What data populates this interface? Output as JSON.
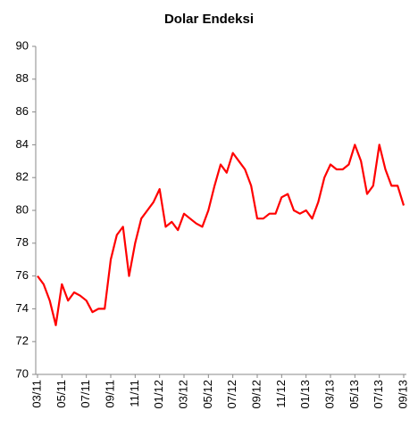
{
  "chart_data": {
    "type": "line",
    "title": "Dolar Endeksi",
    "categories": [
      "03/11",
      null,
      null,
      null,
      "05/11",
      null,
      null,
      null,
      "07/11",
      null,
      null,
      null,
      "09/11",
      null,
      null,
      null,
      "11/11",
      null,
      null,
      null,
      "01/12",
      null,
      null,
      null,
      "03/12",
      null,
      null,
      null,
      "05/12",
      null,
      null,
      null,
      "07/12",
      null,
      null,
      null,
      "09/12",
      null,
      null,
      null,
      "11/12",
      null,
      null,
      null,
      "01/13",
      null,
      null,
      null,
      "03/13",
      null,
      null,
      null,
      "05/13",
      null,
      null,
      null,
      "07/13",
      null,
      null,
      null,
      "09/13"
    ],
    "values": [
      76,
      75.5,
      74.5,
      73,
      75.5,
      74.5,
      75,
      74.8,
      74.5,
      73.8,
      74,
      74,
      77,
      78.5,
      79,
      76,
      78,
      79.5,
      80,
      80.5,
      81.3,
      79,
      79.3,
      78.8,
      79.8,
      79.5,
      79.2,
      79,
      80,
      81.5,
      82.8,
      82.3,
      83.5,
      83,
      82.5,
      81.5,
      79.5,
      79.5,
      79.8,
      79.8,
      80.8,
      81,
      80,
      79.8,
      80,
      79.5,
      80.5,
      82,
      82.8,
      82.5,
      82.5,
      82.8,
      84,
      83,
      81,
      81.5,
      84,
      82.5,
      81.5,
      81.5,
      80.3
    ],
    "color": "#ff0000",
    "ylim": [
      70,
      90
    ],
    "yticks": [
      70,
      72,
      74,
      76,
      78,
      80,
      82,
      84,
      86,
      88,
      90
    ]
  }
}
